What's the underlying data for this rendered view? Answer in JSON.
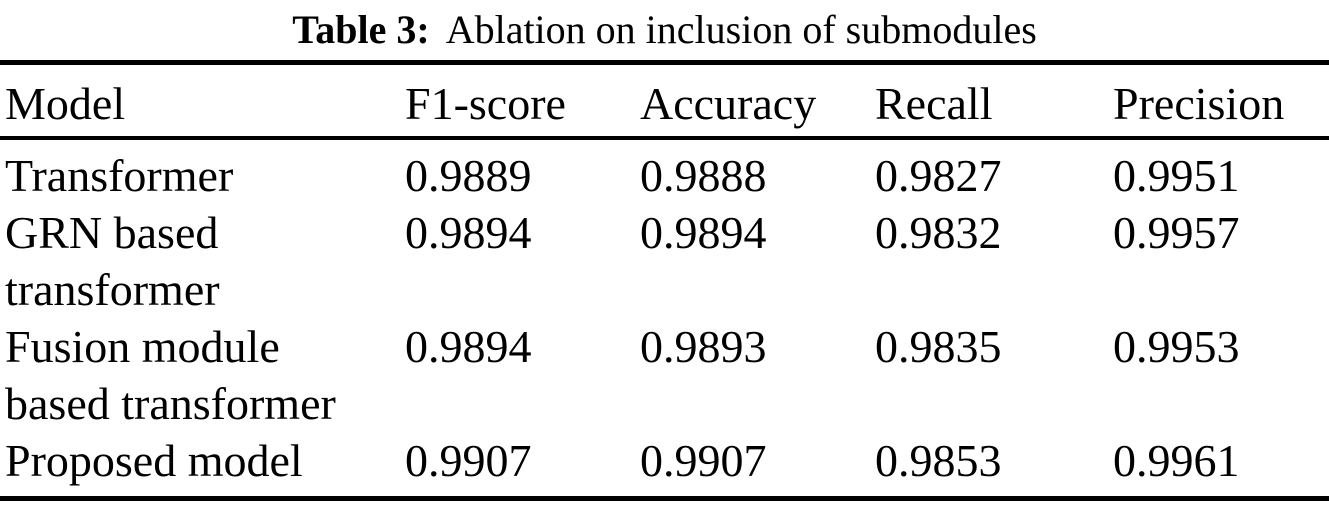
{
  "caption": {
    "label": "Table 3:",
    "text": "Ablation on inclusion of submodules"
  },
  "table": {
    "columns": [
      "Model",
      "F1-score",
      "Accuracy",
      "Recall",
      "Precision"
    ],
    "rows": [
      {
        "model": "Transformer",
        "f1": "0.9889",
        "accuracy": "0.9888",
        "recall": "0.9827",
        "precision": "0.9951"
      },
      {
        "model": "GRN based\ntransformer",
        "f1": "0.9894",
        "accuracy": "0.9894",
        "recall": "0.9832",
        "precision": "0.9957"
      },
      {
        "model": "Fusion module\nbased transformer",
        "f1": "0.9894",
        "accuracy": "0.9893",
        "recall": "0.9835",
        "precision": "0.9953"
      },
      {
        "model": "Proposed model",
        "f1": "0.9907",
        "accuracy": "0.9907",
        "recall": "0.9853",
        "precision": "0.9961"
      }
    ]
  },
  "colors": {
    "text": "#000000",
    "background": "#ffffff",
    "rule": "#000000"
  }
}
